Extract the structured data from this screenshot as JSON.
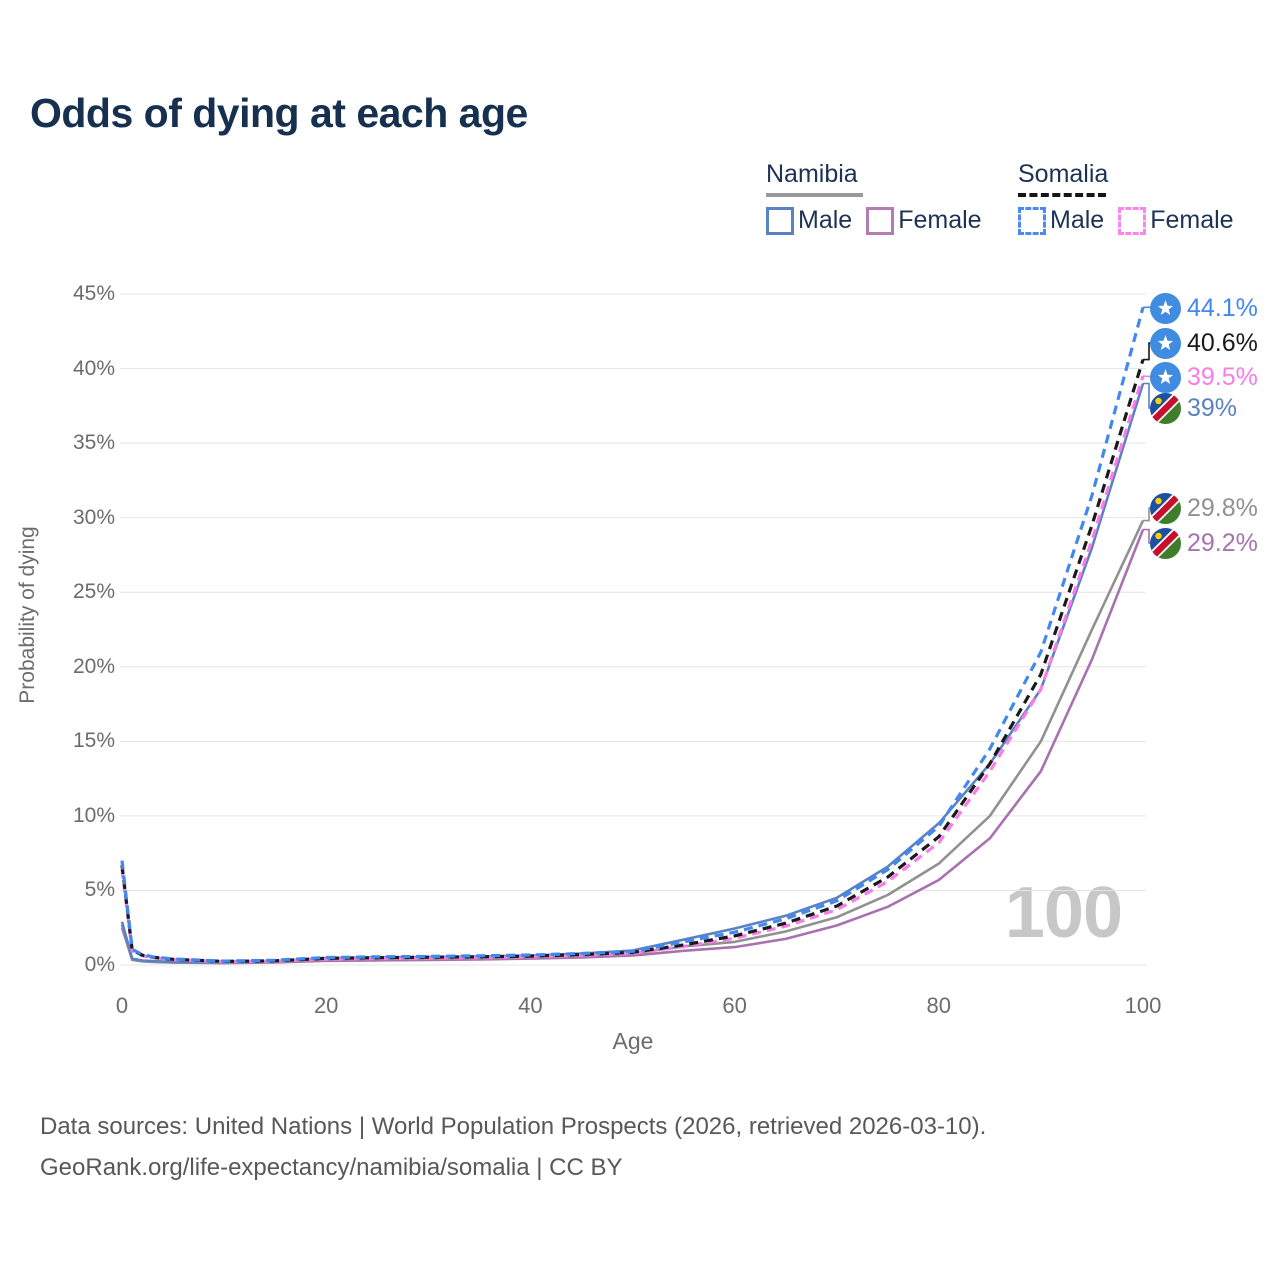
{
  "page": {
    "title": "Odds of dying at each age"
  },
  "legend": {
    "groups": [
      {
        "country": "Namibia",
        "line_style": "solid",
        "line_sample_color": "#9a9a9a",
        "items": [
          {
            "label": "Male",
            "color": "#5b82c0",
            "style": "solid"
          },
          {
            "label": "Female",
            "color": "#b27cb5",
            "style": "solid"
          }
        ]
      },
      {
        "country": "Somalia",
        "line_style": "dashed",
        "line_sample_color": "#161616",
        "items": [
          {
            "label": "Male",
            "color": "#4b8bf2",
            "style": "dashed"
          },
          {
            "label": "Female",
            "color": "#fb84ef",
            "style": "dashed"
          }
        ]
      }
    ]
  },
  "axes": {
    "y_label": "Probability of dying",
    "x_label": "Age",
    "y_ticks": [
      "0%",
      "5%",
      "10%",
      "15%",
      "20%",
      "25%",
      "30%",
      "35%",
      "40%",
      "45%"
    ],
    "x_ticks": [
      "0",
      "20",
      "40",
      "60",
      "80",
      "100"
    ]
  },
  "watermark": "100",
  "footer": {
    "line1": "Data sources: United Nations | World Population Prospects (2026, retrieved 2026-03-10).",
    "line2": "GeoRank.org/life-expectancy/namibia/somalia | CC BY"
  },
  "colors": {
    "title": "#16304f",
    "legend_text": "#1c3353",
    "axis_text": "#6c6c6c",
    "gridline": "#e4e4e4",
    "watermark": "#c7c7c7",
    "footer_text": "#58585a"
  },
  "chart_data": {
    "type": "line",
    "title": "Odds of dying at each age",
    "xlabel": "Age",
    "ylabel": "Probability of dying",
    "xlim": [
      0,
      100
    ],
    "ylim_percent": [
      0,
      45
    ],
    "x_ticks": [
      0,
      20,
      40,
      60,
      80,
      100
    ],
    "y_ticks_percent": [
      0,
      5,
      10,
      15,
      20,
      25,
      30,
      35,
      40,
      45
    ],
    "grid": "horizontal-only",
    "legend_position": "top-right",
    "hovered_age": 100,
    "ages": [
      0,
      1,
      2,
      3,
      5,
      10,
      15,
      20,
      25,
      30,
      35,
      40,
      45,
      50,
      55,
      60,
      65,
      70,
      75,
      80,
      85,
      90,
      95,
      100
    ],
    "series": [
      {
        "name": "Somalia Male",
        "country": "Somalia",
        "sex": "Male",
        "style": "dashed",
        "color": "#4288f0",
        "end_label": "44.1%",
        "end_value_percent": 44.1,
        "flag": "somalia",
        "values": [
          7.0,
          1.05,
          0.7,
          0.55,
          0.4,
          0.26,
          0.32,
          0.5,
          0.55,
          0.58,
          0.62,
          0.67,
          0.77,
          0.92,
          1.55,
          2.2,
          3.1,
          4.3,
          6.4,
          9.3,
          14.5,
          21.0,
          31.5,
          44.1
        ]
      },
      {
        "name": "Somalia Both sexes",
        "country": "Somalia",
        "sex": "Both",
        "style": "dashed",
        "color": "#1a1a1a",
        "end_label": "40.6%",
        "end_value_percent": 40.6,
        "flag": "somalia",
        "values": [
          6.7,
          1.0,
          0.66,
          0.52,
          0.38,
          0.24,
          0.28,
          0.45,
          0.49,
          0.52,
          0.55,
          0.6,
          0.7,
          0.85,
          1.35,
          1.95,
          2.8,
          3.95,
          5.9,
          8.6,
          13.5,
          19.5,
          29.5,
          40.6
        ]
      },
      {
        "name": "Somalia Female",
        "country": "Somalia",
        "sex": "Female",
        "style": "dashed",
        "color": "#f97ce8",
        "end_label": "39.5%",
        "end_value_percent": 39.5,
        "flag": "somalia",
        "values": [
          6.4,
          0.95,
          0.62,
          0.49,
          0.36,
          0.22,
          0.26,
          0.39,
          0.43,
          0.46,
          0.49,
          0.54,
          0.64,
          0.78,
          1.25,
          1.8,
          2.6,
          3.7,
          5.6,
          8.2,
          13.0,
          18.5,
          28.5,
          39.5
        ]
      },
      {
        "name": "Namibia Male",
        "country": "Namibia",
        "sex": "Male",
        "style": "solid",
        "color": "#5b82c0",
        "end_label": "39%",
        "end_value_percent": 39.0,
        "flag": "namibia",
        "values": [
          2.9,
          0.42,
          0.3,
          0.26,
          0.21,
          0.18,
          0.27,
          0.46,
          0.51,
          0.54,
          0.57,
          0.64,
          0.77,
          0.97,
          1.7,
          2.45,
          3.3,
          4.5,
          6.6,
          9.5,
          13.5,
          18.5,
          28.0,
          39.0
        ]
      },
      {
        "name": "Namibia Both sexes",
        "country": "Namibia",
        "sex": "Both",
        "style": "solid",
        "color": "#919191",
        "end_label": "29.8%",
        "end_value_percent": 29.8,
        "flag": "namibia",
        "values": [
          2.7,
          0.38,
          0.27,
          0.23,
          0.18,
          0.15,
          0.21,
          0.36,
          0.41,
          0.43,
          0.46,
          0.52,
          0.62,
          0.78,
          1.25,
          1.55,
          2.25,
          3.2,
          4.7,
          6.8,
          10.0,
          15.0,
          22.5,
          29.8
        ]
      },
      {
        "name": "Namibia Female",
        "country": "Namibia",
        "sex": "Female",
        "style": "solid",
        "color": "#a871b0",
        "end_label": "29.2%",
        "end_value_percent": 29.2,
        "flag": "namibia",
        "values": [
          2.5,
          0.35,
          0.25,
          0.21,
          0.16,
          0.13,
          0.17,
          0.28,
          0.31,
          0.34,
          0.37,
          0.43,
          0.51,
          0.64,
          0.95,
          1.2,
          1.75,
          2.65,
          3.9,
          5.7,
          8.5,
          13.0,
          20.5,
          29.2
        ]
      }
    ]
  }
}
